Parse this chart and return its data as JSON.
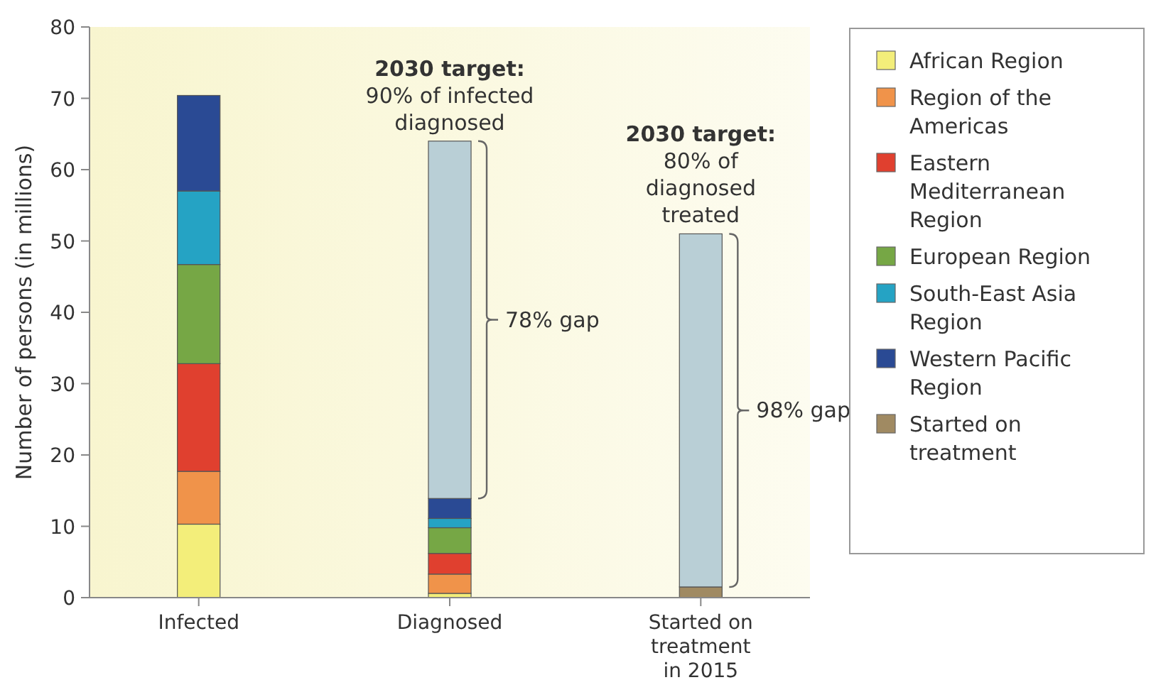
{
  "chart_data": {
    "type": "bar",
    "stacked": true,
    "ylabel": "Number of persons (in millions)",
    "categories": [
      "Infected",
      "Diagnosed",
      "Started on treatment in 2015"
    ],
    "ylim": [
      0,
      80
    ],
    "yticks": [
      0,
      10,
      20,
      30,
      40,
      50,
      60,
      70,
      80
    ],
    "grid": false,
    "legend": "right",
    "series": [
      {
        "name": "African Region",
        "color": "#f3ee7a",
        "values": [
          10.3,
          0.6,
          null
        ]
      },
      {
        "name": "Region of the Americas",
        "color": "#f0934a",
        "values": [
          7.4,
          2.7,
          null
        ]
      },
      {
        "name": "Eastern Mediterranean Region",
        "color": "#e0402f",
        "values": [
          15.1,
          2.9,
          null
        ]
      },
      {
        "name": "European Region",
        "color": "#76a745",
        "values": [
          13.9,
          3.6,
          null
        ]
      },
      {
        "name": "South-East Asia Region",
        "color": "#25a3c4",
        "values": [
          10.3,
          1.3,
          null
        ]
      },
      {
        "name": "Western Pacific Region",
        "color": "#2a4a94",
        "values": [
          13.4,
          2.8,
          null
        ]
      },
      {
        "name": "Started on treatment",
        "color": "#a08a62",
        "values": [
          null,
          null,
          1.5
        ]
      },
      {
        "color": "#b9cfd6",
        "values": [
          null,
          50.1,
          49.5
        ]
      }
    ],
    "annotations": [
      {
        "text": "2030 target: 90% of infected diagnosed",
        "x": "Diagnosed",
        "y": 64
      },
      "78% gap",
      {
        "text": "2030 target: 80% of diagnosed treated",
        "x": "Started on treatment in 2015",
        "y": 51
      },
      "98% gap"
    ]
  }
}
